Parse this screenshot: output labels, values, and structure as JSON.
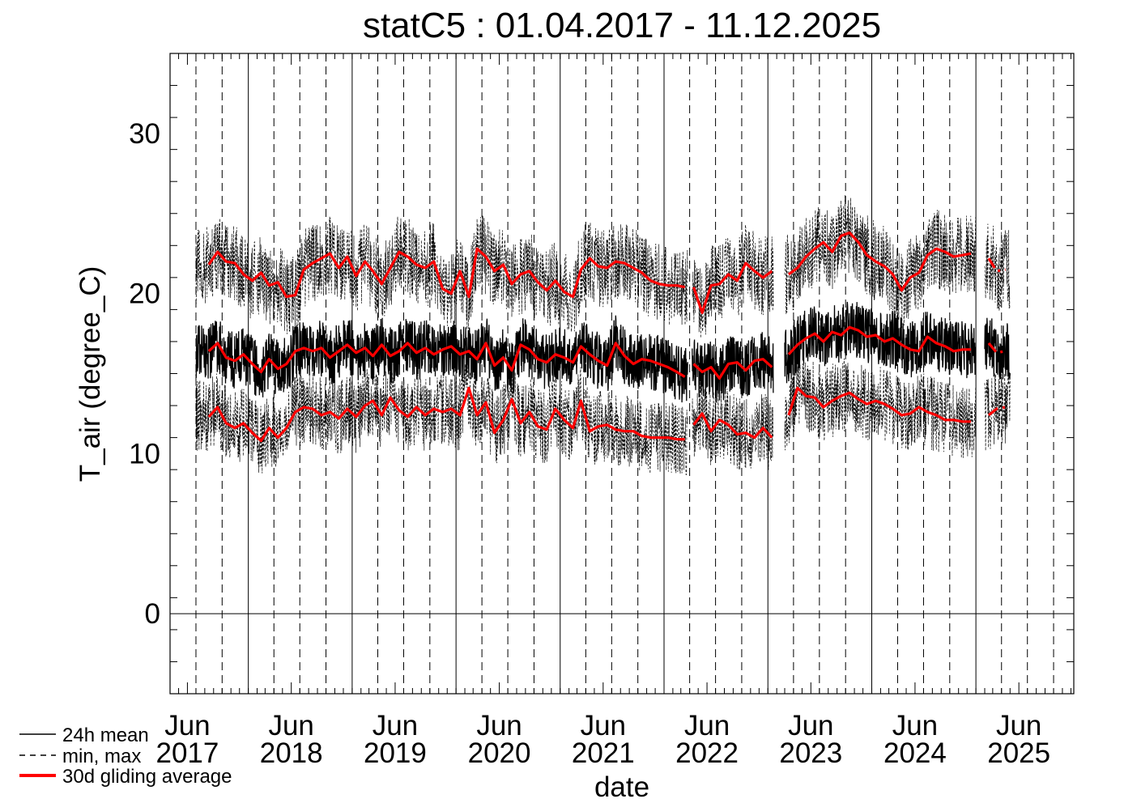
{
  "chart_data": {
    "type": "line",
    "title": "statC5 : 01.04.2017 - 11.12.2025",
    "xlabel": "date",
    "ylabel": "T_air (degree_C)",
    "ylim": [
      -5,
      35
    ],
    "xlim": [
      "2017-04-01",
      "2025-12-11"
    ],
    "yticks": [
      0,
      10,
      20,
      30
    ],
    "xticks": [
      {
        "date": "2017-06-01",
        "month": "Jun",
        "year": "2017"
      },
      {
        "date": "2018-06-01",
        "month": "Jun",
        "year": "2018"
      },
      {
        "date": "2019-06-01",
        "month": "Jun",
        "year": "2019"
      },
      {
        "date": "2020-06-01",
        "month": "Jun",
        "year": "2020"
      },
      {
        "date": "2021-06-01",
        "month": "Jun",
        "year": "2021"
      },
      {
        "date": "2022-06-01",
        "month": "Jun",
        "year": "2022"
      },
      {
        "date": "2023-06-01",
        "month": "Jun",
        "year": "2023"
      },
      {
        "date": "2024-06-01",
        "month": "Jun",
        "year": "2024"
      },
      {
        "date": "2025-06-01",
        "month": "Jun",
        "year": "2025"
      }
    ],
    "grid": {
      "solid_year_lines": [
        "2018-01-01",
        "2019-01-01",
        "2020-01-01",
        "2021-01-01",
        "2022-01-01",
        "2023-01-01",
        "2024-01-01",
        "2025-01-01"
      ],
      "dashed_lines": "first day of every quarter",
      "zero_line": true
    },
    "legend": {
      "placement": "bottom-left",
      "entries": [
        {
          "label": "24h mean",
          "style": "solid",
          "color": "#000000"
        },
        {
          "label": "min, max",
          "style": "dashed",
          "color": "#000000"
        },
        {
          "label": "30d gliding average",
          "style": "solid-thick",
          "color": "#ff0000"
        }
      ]
    },
    "series": [
      {
        "name": "30d gliding average",
        "color": "#ff0000",
        "segments": [
          {
            "x": [
              "2017-08-15",
              "2017-09-15",
              "2017-10-15",
              "2017-11-15",
              "2017-12-15",
              "2018-01-15",
              "2018-02-15",
              "2018-03-15",
              "2018-04-15",
              "2018-05-15",
              "2018-06-15",
              "2018-07-15",
              "2018-08-15",
              "2018-09-15",
              "2018-10-15",
              "2018-11-15",
              "2018-12-15",
              "2019-01-15",
              "2019-02-15",
              "2019-03-15",
              "2019-04-15",
              "2019-05-15",
              "2019-06-15",
              "2019-07-15",
              "2019-08-15",
              "2019-09-15",
              "2019-10-15",
              "2019-11-15",
              "2019-12-15",
              "2020-01-15",
              "2020-02-15",
              "2020-03-15",
              "2020-04-15",
              "2020-05-15",
              "2020-06-15",
              "2020-07-15",
              "2020-08-15",
              "2020-09-15",
              "2020-10-15",
              "2020-11-15",
              "2020-12-15",
              "2021-01-15",
              "2021-02-15",
              "2021-03-15",
              "2021-04-15",
              "2021-05-15",
              "2021-06-15",
              "2021-07-15",
              "2021-08-15",
              "2021-09-15",
              "2021-10-15",
              "2021-11-15",
              "2021-12-15",
              "2022-01-15",
              "2022-02-15",
              "2022-03-15"
            ],
            "mean": [
              16.4,
              16.9,
              16.0,
              15.8,
              16.2,
              15.6,
              15.1,
              15.9,
              15.3,
              15.6,
              16.4,
              16.6,
              16.4,
              16.6,
              16.0,
              16.4,
              16.8,
              16.3,
              16.6,
              16.1,
              16.8,
              16.1,
              16.4,
              16.9,
              16.3,
              16.6,
              16.2,
              16.5,
              16.7,
              16.2,
              16.4,
              15.9,
              16.9,
              15.5,
              16.0,
              15.2,
              16.8,
              16.5,
              15.9,
              15.7,
              16.2,
              16.0,
              15.7,
              16.7,
              16.2,
              15.8,
              15.5,
              16.9,
              16.1,
              15.6,
              15.9,
              15.8,
              15.6,
              15.4,
              15.1,
              14.8
            ],
            "max": [
              21.8,
              22.6,
              22.0,
              21.9,
              21.2,
              20.8,
              21.3,
              20.5,
              20.7,
              19.8,
              19.9,
              21.5,
              21.9,
              22.2,
              22.5,
              21.6,
              22.3,
              21.1,
              22.0,
              21.4,
              20.6,
              21.6,
              22.6,
              22.3,
              21.8,
              21.6,
              22.0,
              20.3,
              20.0,
              21.4,
              19.8,
              22.8,
              22.3,
              21.4,
              21.8,
              20.6,
              21.2,
              21.4,
              20.7,
              20.2,
              20.8,
              20.1,
              19.8,
              21.5,
              22.2,
              21.7,
              21.6,
              22.0,
              21.9,
              21.6,
              21.3,
              20.8,
              20.6,
              20.5,
              20.5,
              20.4
            ],
            "min": [
              12.3,
              12.9,
              11.9,
              11.6,
              11.9,
              11.3,
              10.8,
              11.6,
              11.0,
              11.6,
              12.6,
              12.9,
              12.8,
              12.4,
              12.6,
              12.2,
              12.8,
              12.3,
              13.0,
              13.3,
              12.4,
              13.5,
              12.7,
              12.3,
              12.9,
              12.4,
              12.8,
              12.6,
              12.8,
              12.4,
              14.1,
              12.4,
              13.2,
              11.3,
              12.1,
              13.4,
              11.9,
              12.6,
              11.7,
              11.5,
              12.8,
              12.1,
              11.6,
              13.3,
              11.4,
              11.7,
              11.8,
              11.5,
              11.4,
              11.4,
              11.1,
              11.0,
              11.0,
              11.0,
              10.9,
              10.9
            ]
          },
          {
            "x": [
              "2022-04-15",
              "2022-05-15",
              "2022-06-15",
              "2022-07-15",
              "2022-08-15",
              "2022-09-15",
              "2022-10-15",
              "2022-11-15",
              "2022-12-15",
              "2023-01-15"
            ],
            "mean": [
              15.6,
              15.1,
              15.4,
              14.7,
              15.6,
              15.7,
              15.2,
              15.8,
              15.9,
              15.4
            ],
            "max": [
              20.4,
              18.8,
              20.5,
              20.6,
              21.2,
              20.8,
              21.9,
              21.4,
              21.0,
              21.4
            ],
            "min": [
              11.8,
              12.5,
              11.4,
              12.1,
              11.8,
              11.2,
              11.3,
              11.0,
              11.6,
              11.0
            ]
          },
          {
            "x": [
              "2023-03-15",
              "2023-04-15",
              "2023-05-15",
              "2023-06-15",
              "2023-07-15",
              "2023-08-15",
              "2023-09-15",
              "2023-10-15",
              "2023-11-15",
              "2023-12-15",
              "2024-01-15",
              "2024-02-15",
              "2024-03-15",
              "2024-04-15",
              "2024-05-15",
              "2024-06-15",
              "2024-07-15",
              "2024-08-15",
              "2024-09-15",
              "2024-10-15",
              "2024-11-15",
              "2024-12-15"
            ],
            "mean": [
              16.2,
              16.8,
              17.2,
              17.5,
              17.0,
              17.6,
              17.4,
              17.9,
              17.7,
              17.3,
              17.4,
              17.0,
              17.2,
              16.8,
              16.5,
              16.4,
              17.3,
              16.9,
              16.7,
              16.4,
              16.5,
              16.5
            ],
            "max": [
              21.2,
              21.6,
              22.3,
              22.8,
              23.2,
              22.6,
              23.6,
              23.8,
              23.2,
              22.4,
              22.0,
              21.7,
              21.2,
              20.2,
              21.0,
              21.3,
              22.4,
              22.8,
              22.6,
              22.3,
              22.4,
              22.5
            ],
            "min": [
              12.4,
              14.1,
              13.6,
              13.5,
              12.9,
              13.3,
              13.6,
              13.8,
              13.4,
              13.1,
              13.3,
              13.1,
              12.8,
              12.4,
              12.5,
              12.9,
              12.6,
              12.4,
              12.1,
              12.1,
              12.0,
              12.0
            ]
          },
          {
            "x": [
              "2025-02-15",
              "2025-03-15",
              "2025-04-15"
            ],
            "mean": [
              16.9,
              16.3,
              16.4
            ],
            "max": [
              22.2,
              21.4,
              21.5
            ],
            "min": [
              12.4,
              12.8,
              12.9
            ]
          }
        ]
      },
      {
        "name": "24h mean",
        "color": "#000000",
        "segments": [
          {
            "start": "2017-07-01",
            "end": "2022-03-25"
          },
          {
            "start": "2022-04-10",
            "end": "2023-01-20"
          },
          {
            "start": "2023-03-01",
            "end": "2024-12-31"
          },
          {
            "start": "2025-02-01",
            "end": "2025-05-01"
          }
        ]
      }
    ]
  }
}
